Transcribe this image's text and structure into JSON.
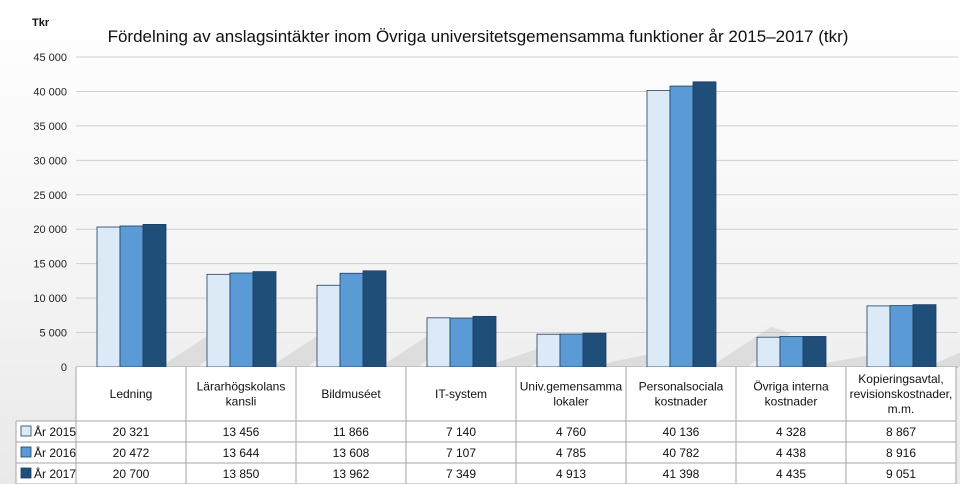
{
  "chart_data": {
    "type": "bar",
    "title": "Fördelning av anslagsintäkter inom Övriga universitetsgemensamma funktioner år 2015–2017  (tkr)",
    "ylabel": "Tkr",
    "ylim": [
      0,
      45000
    ],
    "yticks": [
      "0",
      "5 000",
      "10 000",
      "15 000",
      "20 000",
      "25 000",
      "30 000",
      "35 000",
      "40 000",
      "45 000"
    ],
    "grid": true,
    "legend_position": "bottom-left",
    "categories": [
      "Ledning",
      "Lärarhögskolans kansli",
      "Bildmuséet",
      "IT-system",
      "Univ.gemensamma lokaler",
      "Personalsociala kostnader",
      "Övriga interna kostnader",
      "Kopieringsavtal, revisionskostnader, m.m."
    ],
    "category_lines": [
      [
        "Ledning"
      ],
      [
        "Lärarhögskolans",
        "kansli"
      ],
      [
        "Bildmuséet"
      ],
      [
        "IT-system"
      ],
      [
        "Univ.gemensamma",
        "lokaler"
      ],
      [
        "Personalsociala",
        "kostnader"
      ],
      [
        "Övriga interna",
        "kostnader"
      ],
      [
        "Kopieringsavtal,",
        "revisionskostnader,",
        "m.m."
      ]
    ],
    "series": [
      {
        "name": "År 2015",
        "color": "#dce9f6",
        "values": [
          20321,
          13456,
          11866,
          7140,
          4760,
          40136,
          4328,
          8867
        ],
        "labels": [
          "20 321",
          "13 456",
          "11 866",
          "7 140",
          "4 760",
          "40 136",
          "4 328",
          "8 867"
        ]
      },
      {
        "name": "År 2016",
        "color": "#5b9bd5",
        "values": [
          20472,
          13644,
          13608,
          7107,
          4785,
          40782,
          4438,
          8916
        ],
        "labels": [
          "20 472",
          "13 644",
          "13 608",
          "7 107",
          "4 785",
          "40 782",
          "4 438",
          "8 916"
        ]
      },
      {
        "name": "År 2017",
        "color": "#1f4e79",
        "values": [
          20700,
          13850,
          13962,
          7349,
          4913,
          41398,
          4435,
          9051
        ],
        "labels": [
          "20 700",
          "13 850",
          "13 962",
          "7 349",
          "4 913",
          "41 398",
          "4 435",
          "9 051"
        ]
      }
    ]
  }
}
